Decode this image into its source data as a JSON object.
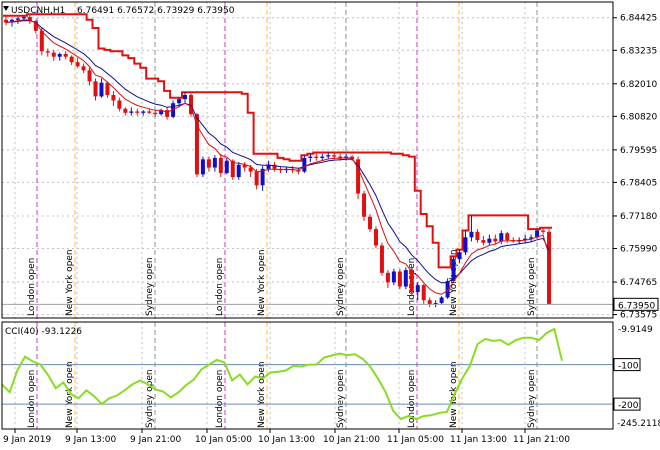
{
  "header": {
    "symbol": "USDCNH,H1",
    "ohlc": "6.76491 6.76572 6.73929 6.73950"
  },
  "price_axis": {
    "labels": [
      "6.84425",
      "6.83235",
      "6.82010",
      "6.80820",
      "6.79595",
      "6.78405",
      "6.77180",
      "6.75990",
      "6.74765",
      "6.73575"
    ],
    "current_price": "6.73950"
  },
  "cci": {
    "label": "CCI(40) -93.1226",
    "axis_top": "-9.9149",
    "axis_bottom": "-245.2118",
    "level_a": "-100",
    "level_b": "-200"
  },
  "time_axis": {
    "labels": [
      "9 Jan 2019",
      "9 Jan 13:00",
      "9 Jan 21:00",
      "10 Jan 05:00",
      "10 Jan 13:00",
      "10 Jan 21:00",
      "11 Jan 05:00",
      "11 Jan 13:00",
      "11 Jan 21:00"
    ]
  },
  "sessions": {
    "london": "London open",
    "newyork": "New York open",
    "sydney": "Sydney open"
  },
  "colors": {
    "bull": "#1010c8",
    "bear": "#e01010",
    "ma_blue": "#101090",
    "ma_red": "#d81010",
    "channel": "#e01010",
    "cci": "#88dd22",
    "london": "#c040c0",
    "newyork": "#f0c040",
    "sydney": "#909090"
  },
  "chart_data": {
    "type": "candlestick",
    "price_candles": [
      [
        6.8435,
        6.845,
        6.8415,
        6.8425
      ],
      [
        6.8425,
        6.844,
        6.841,
        6.8435
      ],
      [
        6.8435,
        6.8445,
        6.842,
        6.844
      ],
      [
        6.844,
        6.845,
        6.843,
        6.8445
      ],
      [
        6.8445,
        6.8455,
        6.842,
        6.843
      ],
      [
        6.843,
        6.8435,
        6.8385,
        6.8395
      ],
      [
        6.8395,
        6.8405,
        6.8305,
        6.832
      ],
      [
        6.832,
        6.833,
        6.83,
        6.8315
      ],
      [
        6.8315,
        6.8325,
        6.8285,
        6.83
      ],
      [
        6.83,
        6.8315,
        6.8285,
        6.831
      ],
      [
        6.831,
        6.832,
        6.829,
        6.83
      ],
      [
        6.83,
        6.8305,
        6.827,
        6.828
      ],
      [
        6.828,
        6.8295,
        6.826,
        6.8265
      ],
      [
        6.8265,
        6.8275,
        6.824,
        6.825
      ],
      [
        6.825,
        6.826,
        6.8195,
        6.821
      ],
      [
        6.821,
        6.822,
        6.814,
        6.8155
      ],
      [
        6.8155,
        6.822,
        6.815,
        6.8205
      ],
      [
        6.8205,
        6.821,
        6.815,
        6.816
      ],
      [
        6.816,
        6.8175,
        6.812,
        6.814
      ],
      [
        6.814,
        6.815,
        6.81,
        6.811
      ],
      [
        6.811,
        6.8115,
        6.8085,
        6.8095
      ],
      [
        6.8095,
        6.8115,
        6.8085,
        6.81
      ],
      [
        6.81,
        6.811,
        6.8085,
        6.8095
      ],
      [
        6.8095,
        6.8105,
        6.8085,
        6.81
      ],
      [
        6.81,
        6.811,
        6.809,
        6.8095
      ],
      [
        6.8095,
        6.8105,
        6.808,
        6.809
      ],
      [
        6.809,
        6.811,
        6.8085,
        6.8105
      ],
      [
        6.8105,
        6.8115,
        6.807,
        6.808
      ],
      [
        6.808,
        6.814,
        6.8075,
        6.813
      ],
      [
        6.813,
        6.815,
        6.8115,
        6.8145
      ],
      [
        6.8145,
        6.817,
        6.813,
        6.816
      ],
      [
        6.816,
        6.8165,
        6.808,
        6.809
      ],
      [
        6.809,
        6.8095,
        6.786,
        6.787
      ],
      [
        6.787,
        6.7935,
        6.786,
        6.7925
      ],
      [
        6.7925,
        6.7935,
        6.788,
        6.7895
      ],
      [
        6.7895,
        6.794,
        6.788,
        6.793
      ],
      [
        6.793,
        6.7945,
        6.786,
        6.7875
      ],
      [
        6.7875,
        6.793,
        6.787,
        6.792
      ],
      [
        6.792,
        6.7925,
        6.785,
        6.786
      ],
      [
        6.786,
        6.7915,
        6.785,
        6.7905
      ],
      [
        6.7905,
        6.7915,
        6.788,
        6.7895
      ],
      [
        6.7895,
        6.7905,
        6.786,
        6.788
      ],
      [
        6.788,
        6.789,
        6.7815,
        6.783
      ],
      [
        6.783,
        6.79,
        6.781,
        6.789
      ],
      [
        6.789,
        6.792,
        6.788,
        6.7905
      ],
      [
        6.7905,
        6.7915,
        6.788,
        6.789
      ],
      [
        6.789,
        6.79,
        6.7875,
        6.7885
      ],
      [
        6.7885,
        6.7895,
        6.7875,
        6.789
      ],
      [
        6.789,
        6.79,
        6.7875,
        6.7885
      ],
      [
        6.7885,
        6.7895,
        6.787,
        6.788
      ],
      [
        6.788,
        6.794,
        6.7875,
        6.793
      ],
      [
        6.793,
        6.7945,
        6.7915,
        6.7935
      ],
      [
        6.7935,
        6.795,
        6.792,
        6.793
      ],
      [
        6.793,
        6.7945,
        6.792,
        6.7935
      ],
      [
        6.7935,
        6.795,
        6.7925,
        6.794
      ],
      [
        6.794,
        6.795,
        6.7925,
        6.7935
      ],
      [
        6.7935,
        6.7945,
        6.792,
        6.793
      ],
      [
        6.793,
        6.7945,
        6.792,
        6.7935
      ],
      [
        6.7935,
        6.794,
        6.792,
        6.7925
      ],
      [
        6.7925,
        6.7935,
        6.778,
        6.78
      ],
      [
        6.78,
        6.781,
        6.77,
        6.7715
      ],
      [
        6.7715,
        6.7725,
        6.766,
        6.767
      ],
      [
        6.767,
        6.768,
        6.76,
        6.761
      ],
      [
        6.761,
        6.762,
        6.75,
        6.751
      ],
      [
        6.751,
        6.752,
        6.7455,
        6.7475
      ],
      [
        6.7475,
        6.7525,
        6.7465,
        6.7515
      ],
      [
        6.7515,
        6.7525,
        6.745,
        6.746
      ],
      [
        6.746,
        6.753,
        6.745,
        6.752
      ],
      [
        6.752,
        6.753,
        6.7425,
        6.744
      ],
      [
        6.744,
        6.7475,
        6.741,
        6.7465
      ],
      [
        6.7465,
        6.747,
        6.7395,
        6.741
      ],
      [
        6.741,
        6.742,
        6.7385,
        6.7395
      ],
      [
        6.7395,
        6.741,
        6.7385,
        6.74
      ],
      [
        6.74,
        6.7425,
        6.7395,
        6.742
      ],
      [
        6.742,
        6.749,
        6.7415,
        6.748
      ],
      [
        6.748,
        6.757,
        6.7475,
        6.756
      ],
      [
        6.756,
        6.7595,
        6.7545,
        6.7585
      ],
      [
        6.7585,
        6.7665,
        6.7575,
        6.764
      ],
      [
        6.764,
        6.772,
        6.7625,
        6.766
      ],
      [
        6.766,
        6.767,
        6.762,
        6.763
      ],
      [
        6.763,
        6.7645,
        6.761,
        6.762
      ],
      [
        6.762,
        6.765,
        6.761,
        6.7635
      ],
      [
        6.7635,
        6.765,
        6.7615,
        6.7625
      ],
      [
        6.7625,
        6.7665,
        6.7615,
        6.7655
      ],
      [
        6.7655,
        6.766,
        6.762,
        6.763
      ],
      [
        6.763,
        6.764,
        6.762,
        6.7625
      ],
      [
        6.7625,
        6.764,
        6.7615,
        6.763
      ],
      [
        6.763,
        6.765,
        6.762,
        6.7635
      ],
      [
        6.7635,
        6.765,
        6.7625,
        6.764
      ],
      [
        6.764,
        6.767,
        6.7635,
        6.7665
      ],
      [
        6.7665,
        6.7675,
        6.765,
        6.766
      ],
      [
        6.766,
        6.767,
        6.7395,
        6.7395
      ]
    ],
    "cci_values": [
      -150,
      -170,
      -115,
      -80,
      -92,
      -100,
      -126,
      -160,
      -145,
      -175,
      -185,
      -165,
      -180,
      -200,
      -185,
      -178,
      -165,
      -150,
      -140,
      -150,
      -163,
      -168,
      -183,
      -170,
      -152,
      -138,
      -112,
      -100,
      -88,
      -95,
      -140,
      -125,
      -150,
      -130,
      -135,
      -120,
      -118,
      -115,
      -103,
      -105,
      -100,
      -100,
      -82,
      -77,
      -72,
      -76,
      -74,
      -85,
      -105,
      -135,
      -170,
      -217,
      -238,
      -230,
      -238,
      -230,
      -228,
      -222,
      -220,
      -175,
      -135,
      -103,
      -48,
      -35,
      -40,
      -38,
      -50,
      -38,
      -32,
      -32,
      -38,
      -20,
      -10,
      -90
    ]
  }
}
